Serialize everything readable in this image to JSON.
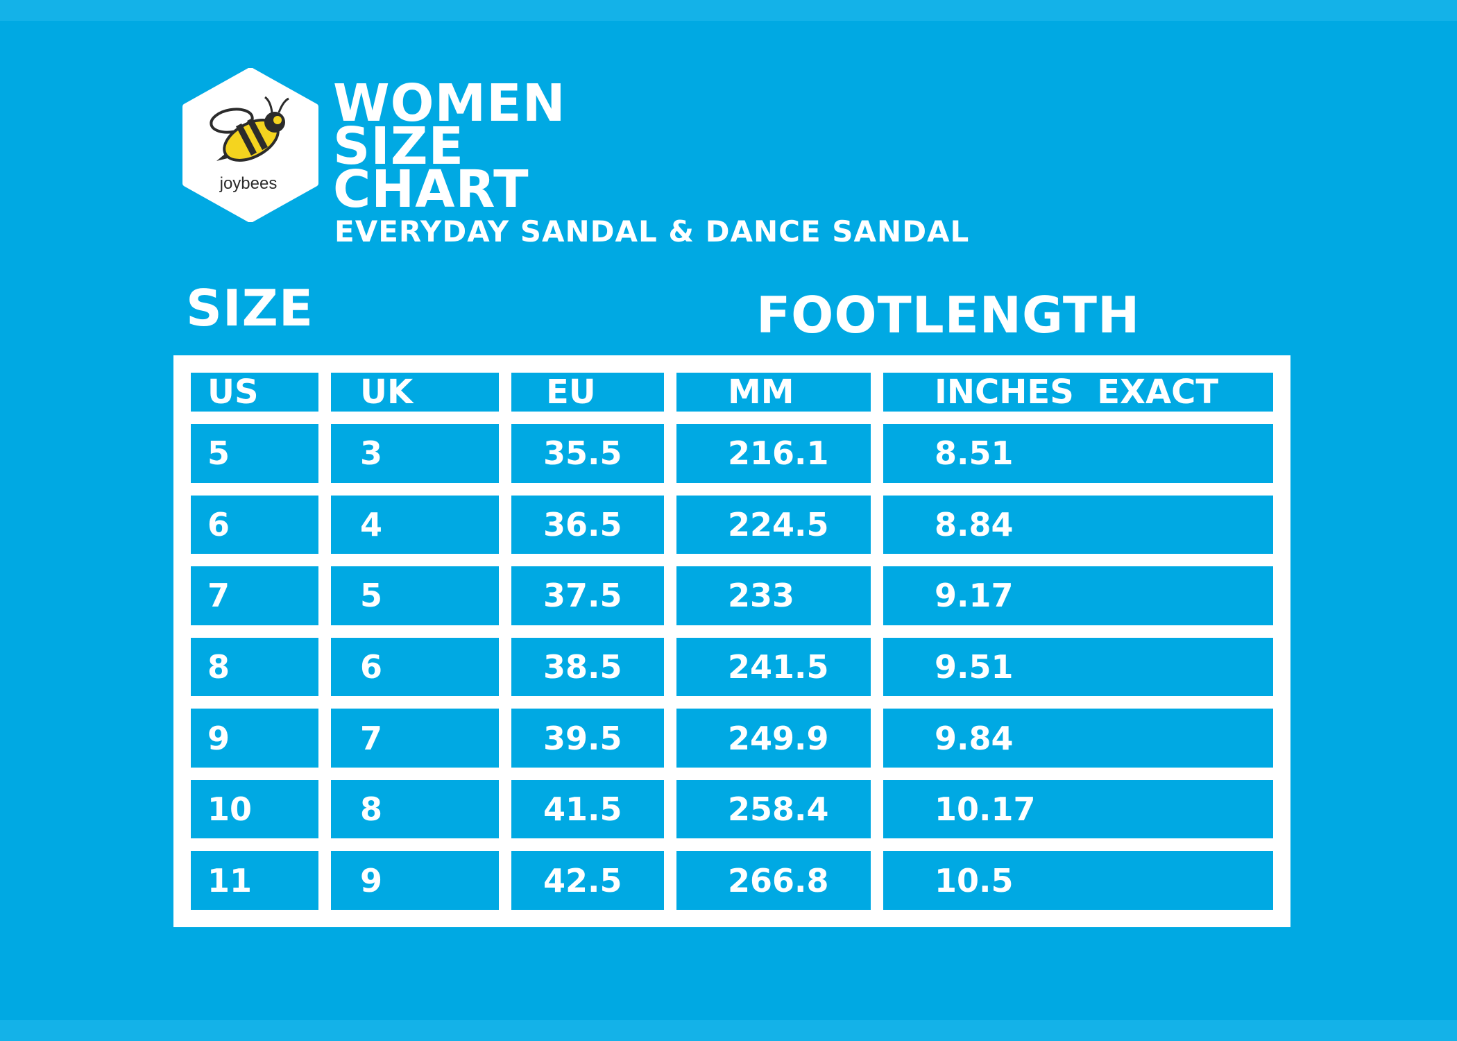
{
  "brand": {
    "name": "joybees",
    "colors": {
      "yellow": "#f4d41f",
      "dark": "#2b2b2b",
      "badge": "#ffffff"
    },
    "icon": "bee-icon"
  },
  "header": {
    "title_lines": [
      "WOMEN",
      "SIZE",
      "CHART"
    ],
    "subtitle": "EVERYDAY SANDAL & DANCE SANDAL"
  },
  "groups": {
    "size": "SIZE",
    "footlength": "FOOTLENGTH"
  },
  "table": {
    "columns": [
      "US",
      "UK",
      "EU",
      "MM",
      "INCHES  EXACT"
    ],
    "rows": [
      [
        "5",
        "3",
        "35.5",
        "216.1",
        "8.51"
      ],
      [
        "6",
        "4",
        "36.5",
        "224.5",
        "8.84"
      ],
      [
        "7",
        "5",
        "37.5",
        "233",
        "9.17"
      ],
      [
        "8",
        "6",
        "38.5",
        "241.5",
        "9.51"
      ],
      [
        "9",
        "7",
        "39.5",
        "249.9",
        "9.84"
      ],
      [
        "10",
        "8",
        "41.5",
        "258.4",
        "10.17"
      ],
      [
        "11",
        "9",
        "42.5",
        "266.8",
        "10.5"
      ]
    ]
  },
  "theme": {
    "background": "#00a9e3",
    "foreground": "#ffffff"
  }
}
